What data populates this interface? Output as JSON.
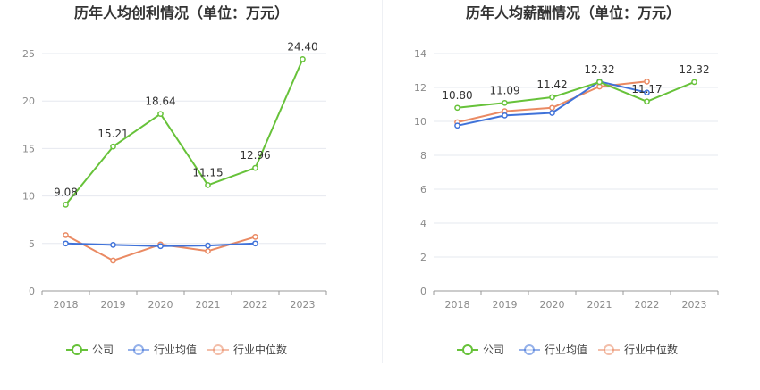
{
  "colors": {
    "company": "#67c23a",
    "industry_avg": "#3f72d9",
    "industry_median": "#ea8a63",
    "grid": "#e6e8ef",
    "axis": "#999999"
  },
  "chart_data": [
    {
      "type": "line",
      "title": "历年人均创利情况（单位：万元）",
      "categories": [
        "2018",
        "2019",
        "2020",
        "2021",
        "2022",
        "2023"
      ],
      "ylim": [
        0,
        25
      ],
      "yticks": [
        "0",
        "5",
        "10",
        "15",
        "20",
        "25"
      ],
      "series": [
        {
          "name": "公司",
          "values": [
            9.08,
            15.21,
            18.64,
            11.15,
            12.96,
            24.4
          ],
          "labels": [
            "9.08",
            "15.21",
            "18.64",
            "11.15",
            "12.96",
            "24.40"
          ]
        },
        {
          "name": "行业均值",
          "values": [
            5.0,
            4.85,
            4.72,
            4.78,
            5.0,
            null
          ]
        },
        {
          "name": "行业中位数",
          "values": [
            5.88,
            3.2,
            4.9,
            4.2,
            5.7,
            null
          ]
        }
      ],
      "legend": [
        "公司",
        "行业均值",
        "行业中位数"
      ],
      "legend_position": "bottom"
    },
    {
      "type": "line",
      "title": "历年人均薪酬情况（单位：万元）",
      "categories": [
        "2018",
        "2019",
        "2020",
        "2021",
        "2022",
        "2023"
      ],
      "ylim": [
        0,
        14
      ],
      "yticks": [
        "0",
        "2",
        "4",
        "6",
        "8",
        "10",
        "12",
        "14"
      ],
      "series": [
        {
          "name": "公司",
          "values": [
            10.8,
            11.09,
            11.42,
            12.32,
            11.17,
            12.32
          ],
          "labels": [
            "10.80",
            "11.09",
            "11.42",
            "12.32",
            "11.17",
            "12.32"
          ]
        },
        {
          "name": "行业均值",
          "values": [
            9.75,
            10.35,
            10.5,
            12.35,
            11.7,
            null
          ]
        },
        {
          "name": "行业中位数",
          "values": [
            9.95,
            10.6,
            10.8,
            12.05,
            12.35,
            null
          ]
        }
      ],
      "legend": [
        "公司",
        "行业均值",
        "行业中位数"
      ],
      "legend_position": "bottom"
    }
  ]
}
